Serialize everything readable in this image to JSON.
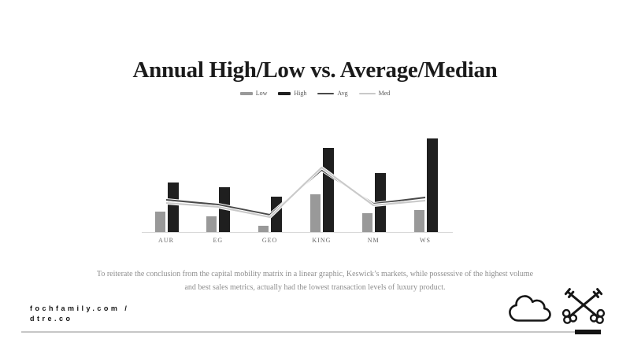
{
  "slide": {
    "title": "Annual High/Low vs. Average/Median",
    "caption": "To reiterate the conclusion from the capital mobility matrix in a linear graphic, Keswick’s markets, while possessive of the highest volume and best sales metrics, actually had the lowest transaction levels of luxury product.",
    "footer": {
      "site_line1": "fochfamily.com /",
      "site_line2": "dtre.co"
    },
    "icons": [
      "cloud-icon",
      "crossed-keys-icon"
    ]
  },
  "colors": {
    "title_text": "#1b1b1b",
    "low_bar": "#999999",
    "high_bar": "#1f1f1f",
    "avg_line": "#4a4a4a",
    "med_line": "#c9c9c9",
    "axis": "#d9d9d9",
    "tick_text": "#666666",
    "caption_text": "#8e8e8e",
    "footer_text": "#141414",
    "divider_gray": "#c6c6c6",
    "divider_black": "#141414"
  },
  "legend": [
    {
      "label": "Low",
      "color": "#999999",
      "swatch_width": 16,
      "swatch_height": 4
    },
    {
      "label": "High",
      "color": "#1f1f1f",
      "swatch_width": 16,
      "swatch_height": 4
    },
    {
      "label": "Avg",
      "color": "#4a4a4a",
      "swatch_width": 21,
      "swatch_height": 2
    },
    {
      "label": "Med",
      "color": "#c9c9c9",
      "swatch_width": 21,
      "swatch_height": 2
    }
  ],
  "chart_data": {
    "type": "bar",
    "subtype": "bar-line-combo",
    "title": "Annual High/Low vs. Average/Median",
    "categories": [
      "AUR",
      "EG",
      "GEO",
      "KING",
      "NM",
      "WS"
    ],
    "series": [
      {
        "name": "Low",
        "kind": "bar",
        "color": "#999999",
        "values": [
          27,
          21,
          9,
          49,
          25,
          29
        ]
      },
      {
        "name": "High",
        "kind": "bar",
        "color": "#1f1f1f",
        "values": [
          64,
          58,
          46,
          108,
          76,
          120
        ]
      },
      {
        "name": "Avg",
        "kind": "line",
        "color": "#4a4a4a",
        "values": [
          42,
          36,
          23,
          80,
          37,
          45
        ]
      },
      {
        "name": "Med",
        "kind": "line",
        "color": "#c9c9c9",
        "values": [
          38,
          33,
          20,
          83,
          35,
          41
        ]
      }
    ],
    "xlabel": "",
    "ylabel": "",
    "ylim": [
      0,
      130
    ],
    "grid": false,
    "y_axis_visible": false,
    "legend_position": "top-center"
  }
}
